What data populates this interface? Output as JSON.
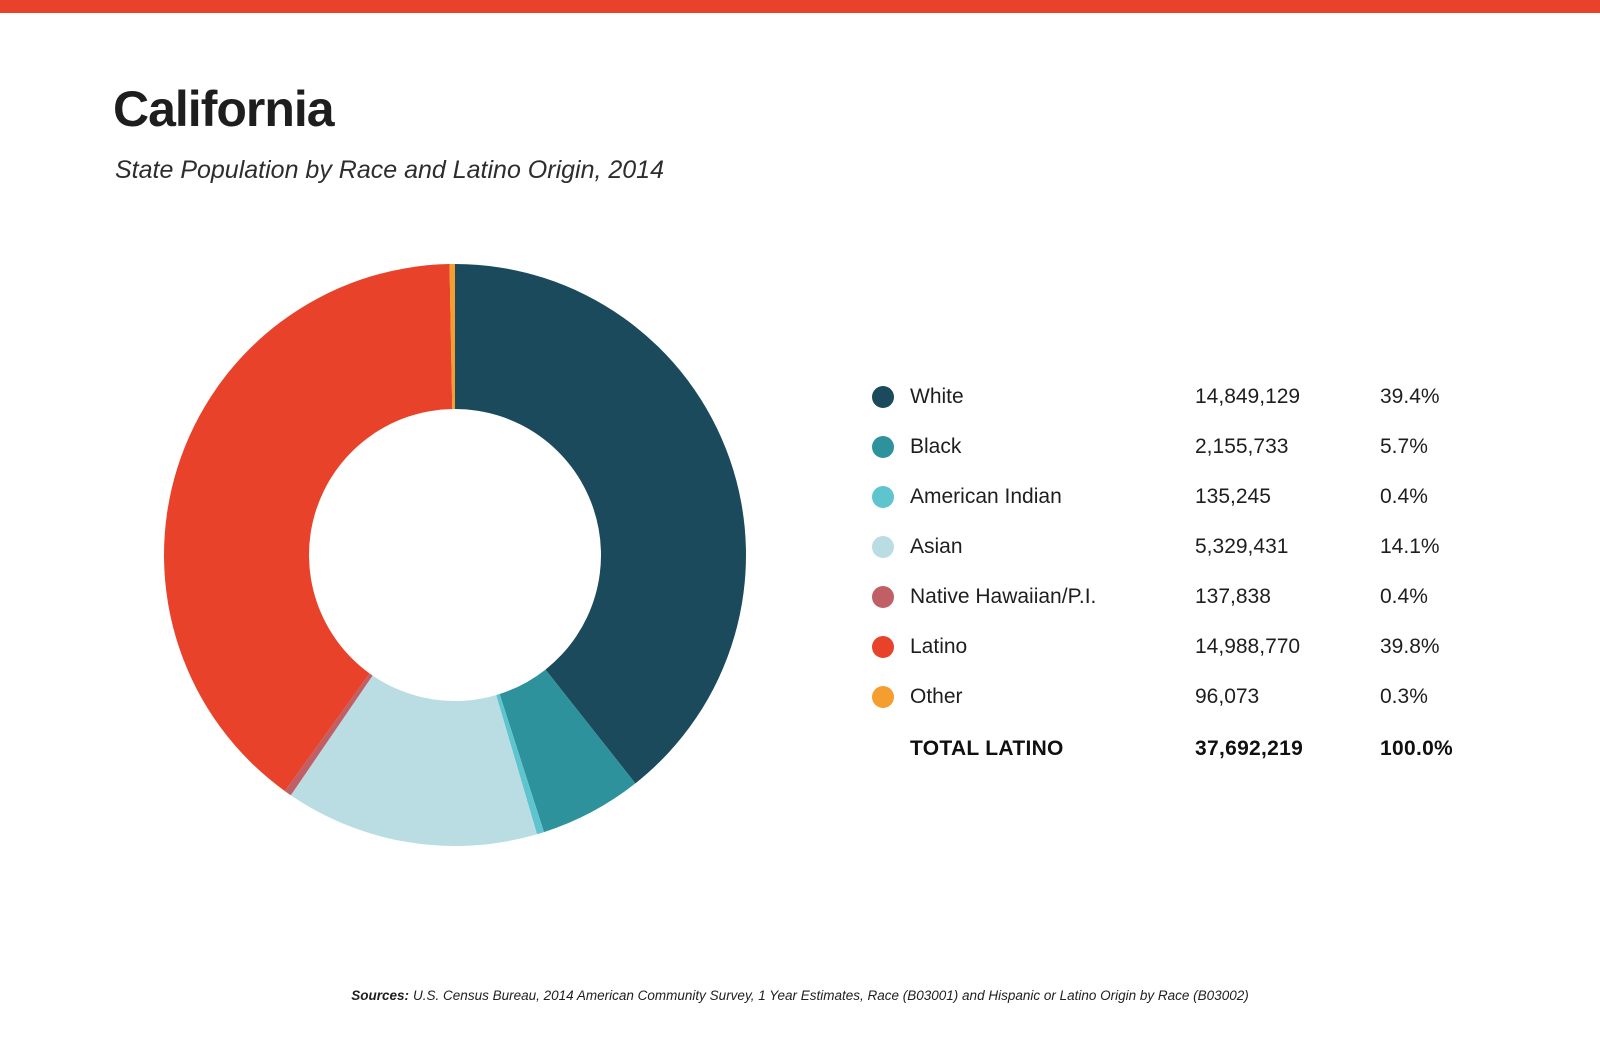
{
  "page": {
    "title": "California",
    "subtitle": "State Population by Race and Latino Origin, 2014",
    "accent_color": "#e8432a"
  },
  "chart_data": {
    "type": "pie",
    "variant": "donut",
    "title": "State Population by Race and Latino Origin, 2014",
    "start_angle_deg": 0,
    "direction": "clockwise",
    "inner_radius_ratio": 0.5,
    "legend_position": "right",
    "series": [
      {
        "label": "White",
        "value": 14849129,
        "value_text": "14,849,129",
        "pct": 39.4,
        "pct_text": "39.4%",
        "color": "#1b4a5c"
      },
      {
        "label": "Black",
        "value": 2155733,
        "value_text": "2,155,733",
        "pct": 5.7,
        "pct_text": "5.7%",
        "color": "#2d929c"
      },
      {
        "label": "American Indian",
        "value": 135245,
        "value_text": "135,245",
        "pct": 0.4,
        "pct_text": "0.4%",
        "color": "#5ec4cd"
      },
      {
        "label": "Asian",
        "value": 5329431,
        "value_text": "5,329,431",
        "pct": 14.1,
        "pct_text": "14.1%",
        "color": "#b9dde3"
      },
      {
        "label": "Native Hawaiian/P.I.",
        "value": 137838,
        "value_text": "137,838",
        "pct": 0.4,
        "pct_text": "0.4%",
        "color": "#c05f66"
      },
      {
        "label": "Latino",
        "value": 14988770,
        "value_text": "14,988,770",
        "pct": 39.8,
        "pct_text": "39.8%",
        "color": "#e8432a"
      },
      {
        "label": "Other",
        "value": 96073,
        "value_text": "96,073",
        "pct": 0.3,
        "pct_text": "0.3%",
        "color": "#f59e30"
      }
    ],
    "total": {
      "label": "TOTAL LATINO",
      "value_text": "37,692,219",
      "pct_text": "100.0%"
    }
  },
  "footer": {
    "sources_label": "Sources:",
    "sources_text": "U.S. Census Bureau, 2014 American Community Survey, 1 Year Estimates, Race (B03001) and Hispanic or Latino Origin by Race (B03002)"
  }
}
